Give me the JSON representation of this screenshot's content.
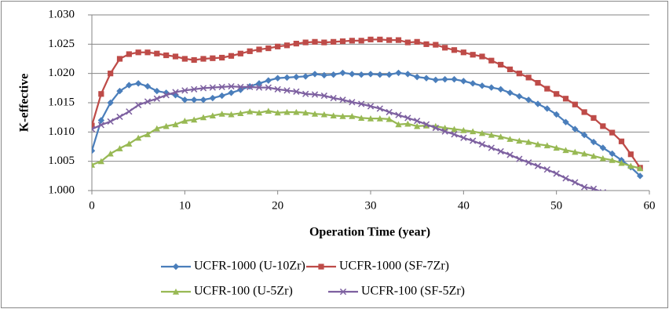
{
  "chart_data": {
    "type": "line",
    "x_label": "Operation Time (year)",
    "y_label": "K-effective",
    "x": [
      0,
      1,
      2,
      3,
      4,
      5,
      6,
      7,
      8,
      9,
      10,
      11,
      12,
      13,
      14,
      15,
      16,
      17,
      18,
      19,
      20,
      21,
      22,
      23,
      24,
      25,
      26,
      27,
      28,
      29,
      30,
      31,
      32,
      33,
      34,
      35,
      36,
      37,
      38,
      39,
      40,
      41,
      42,
      43,
      44,
      45,
      46,
      47,
      48,
      49,
      50,
      51,
      52,
      53,
      54,
      55,
      56,
      57,
      58,
      59
    ],
    "xlim": [
      0,
      60
    ],
    "xticks": [
      0,
      10,
      20,
      30,
      40,
      50,
      60
    ],
    "ylim": [
      1.0,
      1.03
    ],
    "yticks": [
      {
        "value": 1.0,
        "label": "1.000"
      },
      1.005,
      {
        "value": 1.01,
        "label": "1.010"
      },
      1.015,
      {
        "value": 1.02,
        "label": "1.020"
      },
      1.025,
      {
        "value": 1.03,
        "label": "1.030"
      }
    ],
    "grid": true,
    "series": [
      {
        "name": "UCFR-1000 (U-10Zr)",
        "color": "#4a7ebb",
        "marker": "diamond",
        "values": [
          1.0068,
          1.012,
          1.015,
          1.017,
          1.018,
          1.0183,
          1.0178,
          1.017,
          1.0167,
          1.0163,
          1.0155,
          1.0155,
          1.0155,
          1.0158,
          1.0162,
          1.0167,
          1.0172,
          1.0178,
          1.0183,
          1.0188,
          1.0192,
          1.0193,
          1.0194,
          1.0195,
          1.0199,
          1.0197,
          1.0198,
          1.0201,
          1.0199,
          1.0198,
          1.0199,
          1.0198,
          1.0198,
          1.0201,
          1.0199,
          1.0194,
          1.0192,
          1.0189,
          1.019,
          1.019,
          1.0187,
          1.0183,
          1.0179,
          1.0176,
          1.0173,
          1.0167,
          1.0161,
          1.0155,
          1.0148,
          1.014,
          1.013,
          1.0117,
          1.0105,
          1.0095,
          1.0083,
          1.0073,
          1.0063,
          1.0052,
          1.004,
          1.0025
        ]
      },
      {
        "name": "UCFR-1000 (SF-7Zr)",
        "color": "#be4b48",
        "marker": "square",
        "values": [
          1.0111,
          1.0165,
          1.02,
          1.0225,
          1.0233,
          1.0236,
          1.0236,
          1.0234,
          1.0231,
          1.0229,
          1.0225,
          1.0223,
          1.0225,
          1.0226,
          1.0227,
          1.023,
          1.0234,
          1.0238,
          1.0241,
          1.0243,
          1.0246,
          1.0248,
          1.0251,
          1.0253,
          1.0254,
          1.0253,
          1.0254,
          1.0255,
          1.0256,
          1.0256,
          1.0258,
          1.0258,
          1.0257,
          1.0257,
          1.0253,
          1.0254,
          1.025,
          1.0249,
          1.0244,
          1.024,
          1.0236,
          1.0232,
          1.0229,
          1.0222,
          1.0215,
          1.0207,
          1.02,
          1.0193,
          1.0184,
          1.0174,
          1.0165,
          1.0157,
          1.0147,
          1.0134,
          1.0124,
          1.011,
          1.0099,
          1.0084,
          1.0062,
          1.0039
        ]
      },
      {
        "name": "UCFR-100 (U-5Zr)",
        "color": "#98b954",
        "marker": "triangle",
        "values": [
          1.0044,
          1.005,
          1.0063,
          1.0072,
          1.008,
          1.009,
          1.0096,
          1.0106,
          1.011,
          1.0113,
          1.0119,
          1.0121,
          1.0125,
          1.0128,
          1.0131,
          1.013,
          1.0132,
          1.0135,
          1.0133,
          1.0136,
          1.0133,
          1.0134,
          1.0134,
          1.0133,
          1.0131,
          1.013,
          1.0128,
          1.0127,
          1.0127,
          1.0124,
          1.0123,
          1.0123,
          1.0122,
          1.0113,
          1.0114,
          1.011,
          1.0111,
          1.011,
          1.0107,
          1.0105,
          1.0103,
          1.0101,
          1.0098,
          1.0095,
          1.0092,
          1.0088,
          1.0085,
          1.0083,
          1.0079,
          1.0077,
          1.0073,
          1.0069,
          1.0066,
          1.0063,
          1.0059,
          1.0055,
          1.0052,
          1.0047,
          1.0042,
          1.0038
        ]
      },
      {
        "name": "UCFR-100 (SF-5Zr)",
        "color": "#7d60a0",
        "marker": "x",
        "values": [
          1.0105,
          1.0112,
          1.0118,
          1.0126,
          1.0135,
          1.0146,
          1.0152,
          1.0157,
          1.0163,
          1.0168,
          1.0171,
          1.0173,
          1.0175,
          1.0176,
          1.0177,
          1.0178,
          1.0177,
          1.0177,
          1.0176,
          1.0176,
          1.0173,
          1.0171,
          1.0169,
          1.0165,
          1.0164,
          1.0162,
          1.0158,
          1.0155,
          1.0151,
          1.0148,
          1.0144,
          1.014,
          1.0134,
          1.0129,
          1.0124,
          1.0119,
          1.0113,
          1.0107,
          1.0101,
          1.0096,
          1.009,
          1.0085,
          1.0079,
          1.0073,
          1.0067,
          1.0061,
          1.0054,
          1.0048,
          1.0042,
          1.0036,
          1.0029,
          1.0021,
          1.0014,
          1.0006,
          1.0003,
          0.9997,
          null,
          null,
          null,
          null
        ]
      }
    ]
  }
}
